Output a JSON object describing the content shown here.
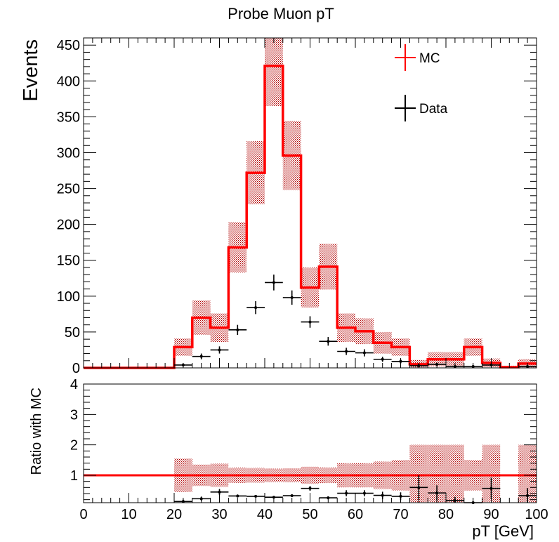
{
  "chart_data": [
    {
      "type": "histogram",
      "title": "Probe Muon pT",
      "xlabel": "",
      "ylabel": "Events",
      "xlim": [
        0,
        100
      ],
      "ylim": [
        0,
        460
      ],
      "yticks": [
        0,
        50,
        100,
        150,
        200,
        250,
        300,
        350,
        400,
        450
      ],
      "bin_edges": [
        0,
        4,
        8,
        12,
        16,
        20,
        24,
        28,
        32,
        36,
        40,
        44,
        48,
        52,
        56,
        60,
        64,
        68,
        72,
        76,
        80,
        84,
        88,
        92,
        96,
        100
      ],
      "legend": {
        "placement": "top-right",
        "entries": [
          "MC",
          "Data"
        ]
      },
      "series": [
        {
          "name": "MC",
          "color": "#ff0000",
          "values": [
            0,
            0,
            0,
            0,
            0,
            29,
            70,
            56,
            168,
            272,
            421,
            296,
            112,
            141,
            56,
            51,
            35,
            29,
            5,
            12,
            12,
            29,
            7,
            1,
            6
          ],
          "err": [
            0,
            0,
            0,
            0,
            0,
            12,
            24,
            20,
            35,
            44,
            56,
            48,
            28,
            32,
            20,
            18,
            15,
            12,
            6,
            10,
            10,
            12,
            6,
            2,
            6
          ]
        },
        {
          "name": "Data",
          "color": "#000000",
          "values": [
            0,
            0,
            0,
            0,
            0,
            4,
            16,
            25,
            53,
            84,
            119,
            98,
            64,
            37,
            23,
            21,
            12,
            9,
            3,
            5,
            2,
            2,
            4,
            0,
            2
          ],
          "err": [
            0,
            0,
            0,
            0,
            0,
            2,
            4,
            5,
            7,
            9,
            11,
            10,
            8,
            6,
            5,
            5,
            3.5,
            3,
            1.7,
            2.2,
            1.4,
            1.4,
            2,
            0,
            1.4
          ]
        }
      ]
    },
    {
      "type": "ratio",
      "xlabel": "pT [GeV]",
      "ylabel": "Ratio with MC",
      "xlim": [
        0,
        100
      ],
      "ylim": [
        0.1,
        4
      ],
      "yticks": [
        1,
        2,
        3,
        4
      ],
      "xticks": [
        0,
        10,
        20,
        30,
        40,
        50,
        60,
        70,
        80,
        90,
        100
      ],
      "reference": 1,
      "band_halfwidth": [
        0,
        0,
        0,
        0,
        0,
        0.55,
        0.35,
        0.38,
        0.25,
        0.24,
        0.22,
        0.23,
        0.28,
        0.26,
        0.4,
        0.4,
        0.45,
        0.5,
        1.0,
        1.0,
        1.0,
        0.5,
        1.0,
        0,
        1.0
      ],
      "values": [
        null,
        null,
        null,
        null,
        null,
        0.14,
        0.23,
        0.45,
        0.32,
        0.31,
        0.28,
        0.33,
        0.57,
        0.26,
        0.41,
        0.41,
        0.34,
        0.31,
        0.6,
        0.42,
        0.17,
        0.07,
        0.57,
        null,
        0.33
      ],
      "err": [
        0,
        0,
        0,
        0,
        0,
        0.06,
        0.07,
        0.1,
        0.05,
        0.04,
        0.03,
        0.04,
        0.08,
        0.05,
        0.1,
        0.1,
        0.12,
        0.13,
        0.4,
        0.25,
        0.12,
        0.06,
        0.35,
        0,
        0.25
      ]
    }
  ]
}
